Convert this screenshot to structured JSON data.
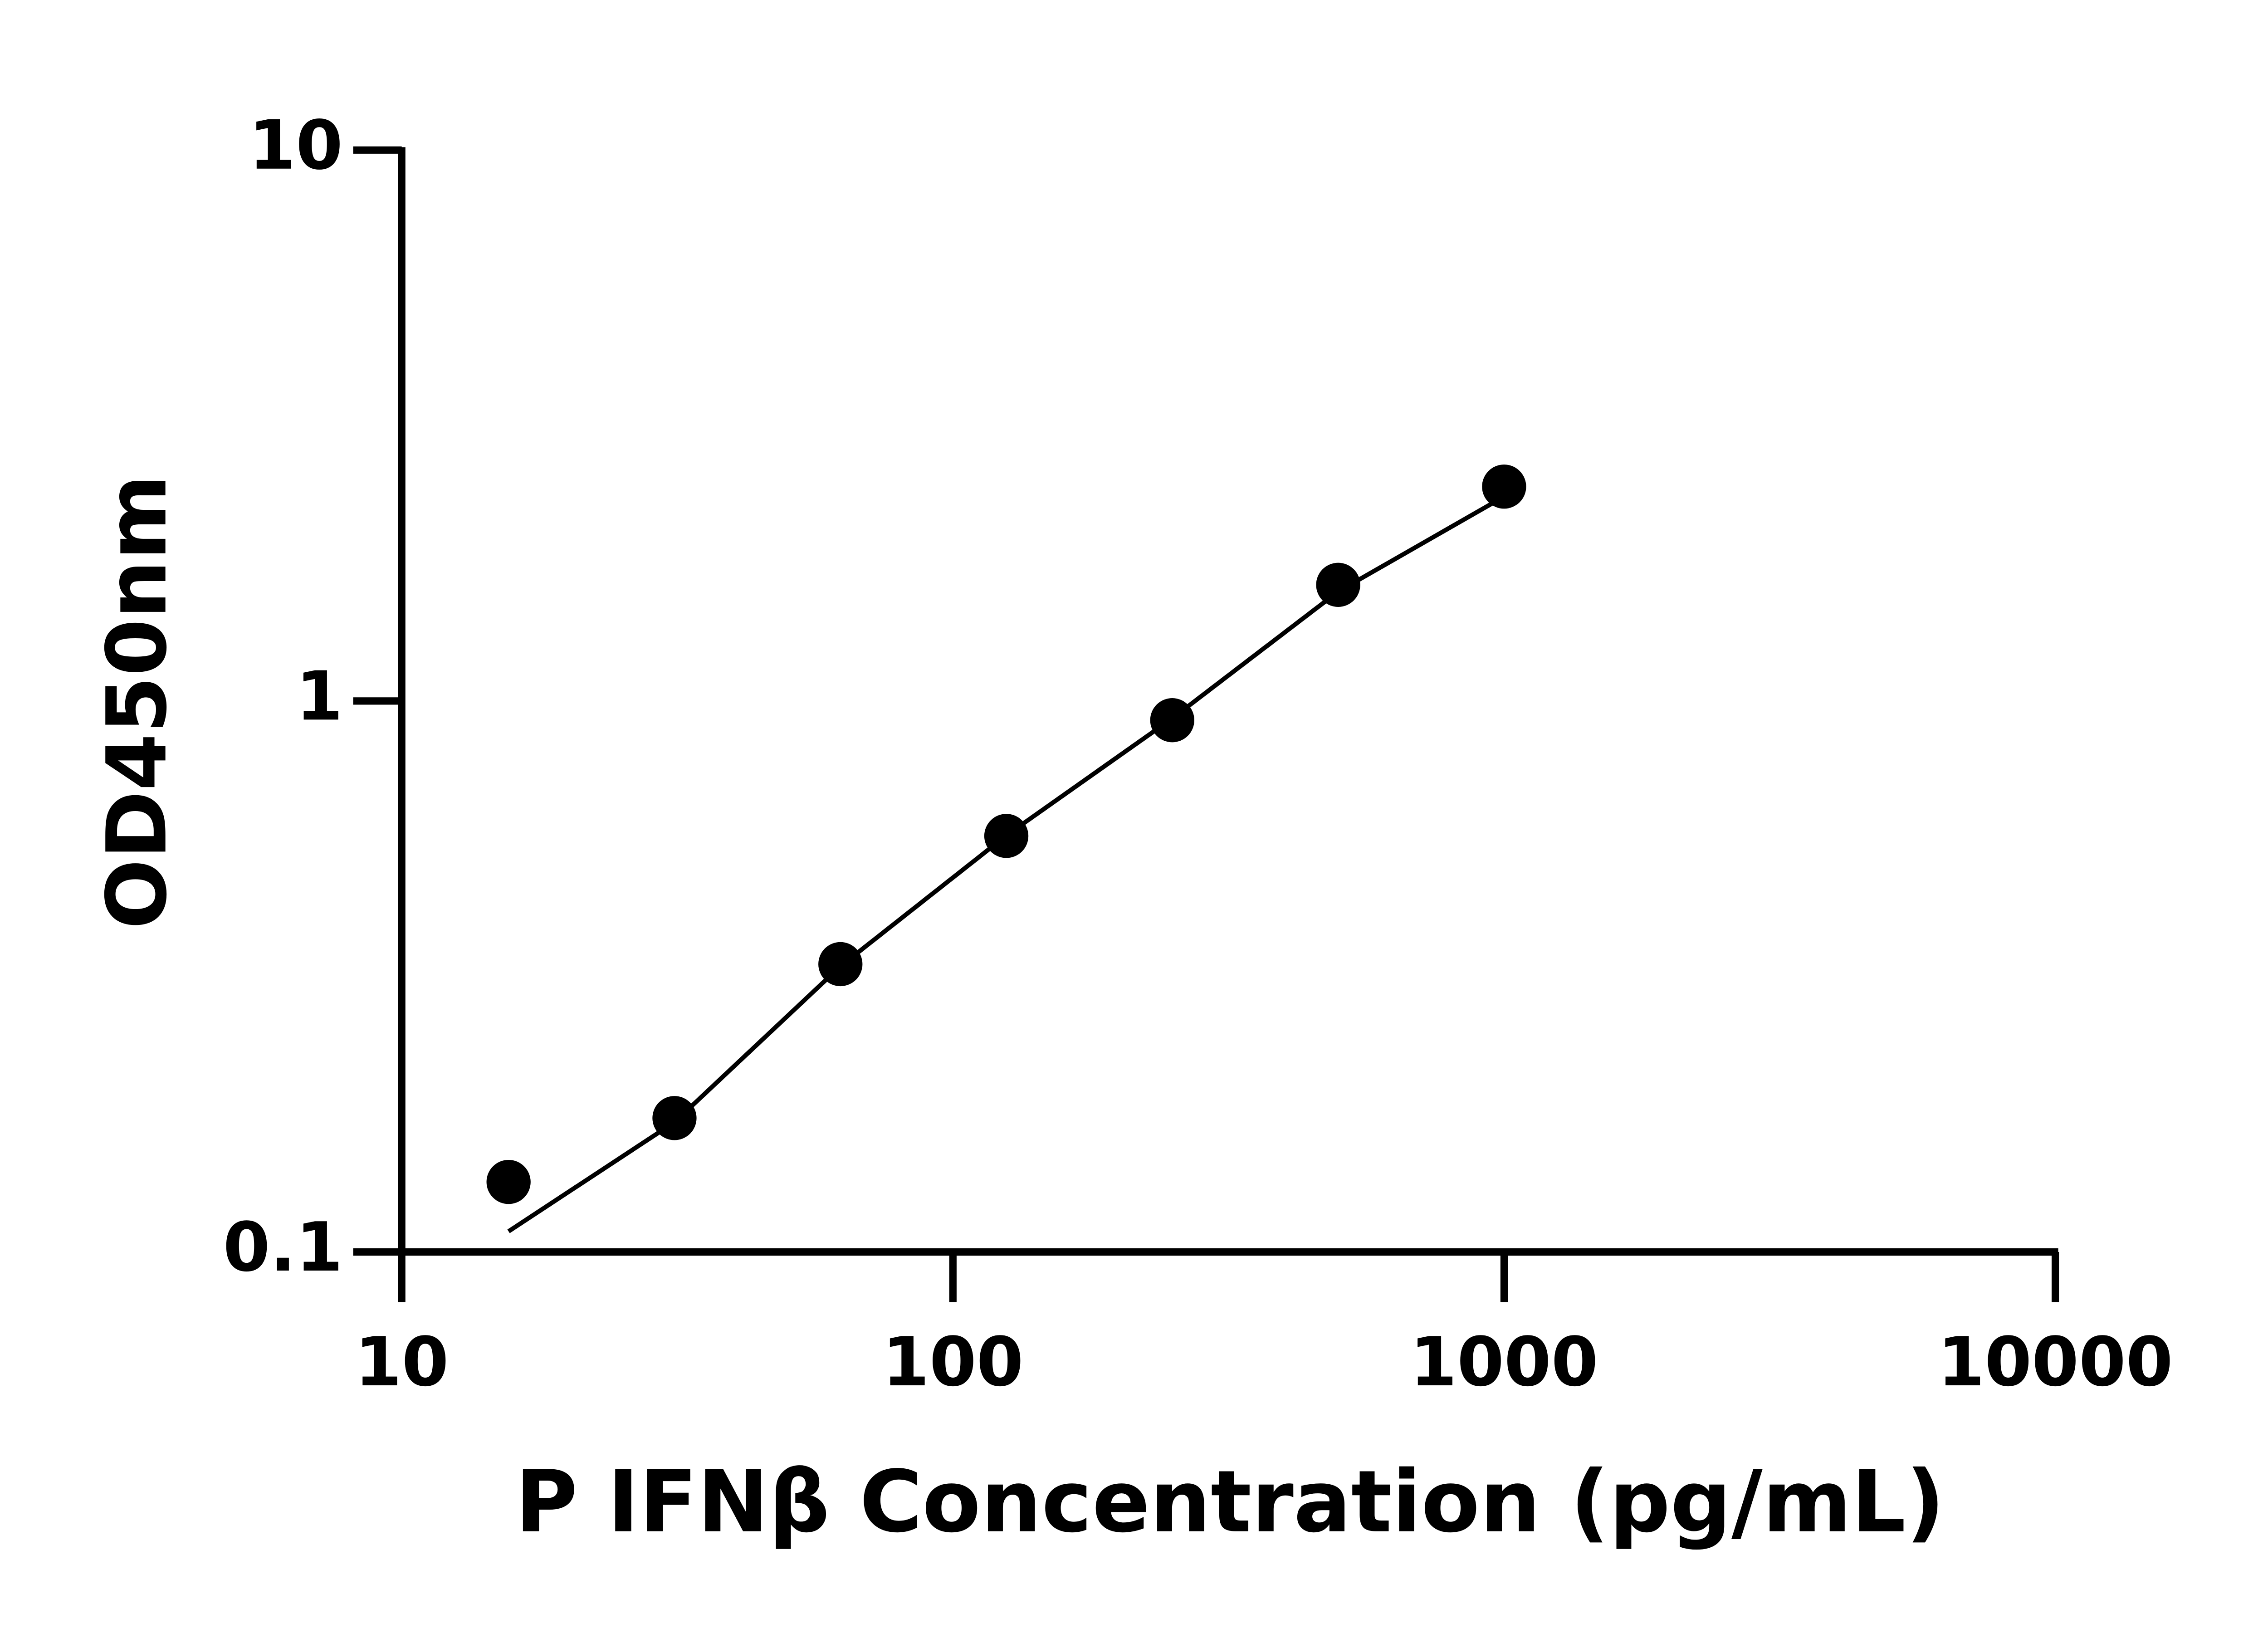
{
  "chart_data": {
    "type": "scatter",
    "xlabel": "P IFNβ Concentration (pg/mL)",
    "ylabel": "OD450nm",
    "x": [
      15.625,
      31.25,
      62.5,
      125,
      250,
      500,
      1000
    ],
    "series": [
      {
        "color": "#000000",
        "style": "markers",
        "values": [
          0.134,
          0.175,
          0.333,
          0.569,
          0.923,
          1.625,
          2.45
        ]
      },
      {
        "color": "#000000",
        "style": "line",
        "values": [
          0.109,
          0.172,
          0.33,
          0.57,
          0.93,
          1.58,
          2.35
        ]
      }
    ],
    "xlim": [
      10,
      10000
    ],
    "xticks": [
      10,
      100,
      1000,
      10000
    ],
    "ylim": [
      0.1,
      10
    ],
    "yticks": [
      0.1,
      1,
      10
    ],
    "xscale": "log",
    "yscale": "log",
    "grid": false
  }
}
